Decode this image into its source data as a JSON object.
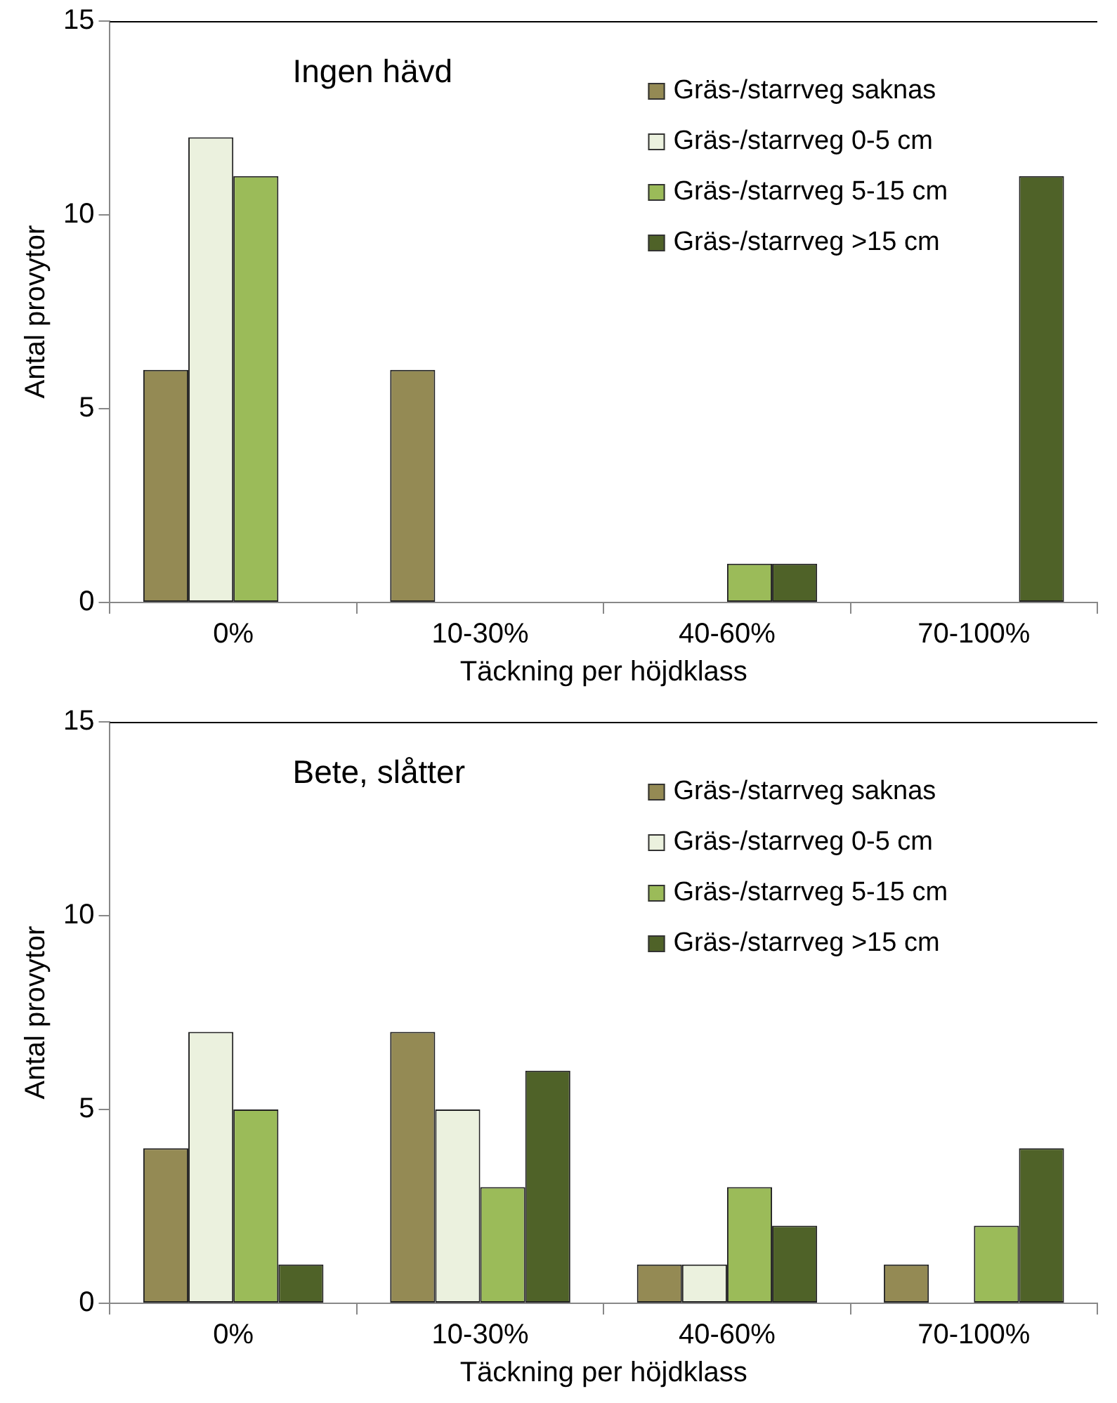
{
  "chart_data": [
    {
      "type": "bar",
      "title": "Ingen hävd",
      "xlabel": "Täckning per höjdklass",
      "ylabel": "Antal provytor",
      "categories": [
        "0%",
        "10-30%",
        "40-60%",
        "70-100%"
      ],
      "series": [
        {
          "name": "Gräs-/starrveg saknas",
          "color": "#948a54",
          "values": [
            6,
            6,
            0,
            0
          ]
        },
        {
          "name": "Gräs-/starrveg 0-5 cm",
          "color": "#ebf1de",
          "values": [
            12,
            0,
            0,
            0
          ]
        },
        {
          "name": "Gräs-/starrveg 5-15 cm",
          "color": "#9bbb59",
          "values": [
            11,
            0,
            1,
            0
          ]
        },
        {
          "name": "Gräs-/starrveg >15 cm",
          "color": "#4f6228",
          "values": [
            0,
            0,
            1,
            11
          ]
        }
      ],
      "ylim": [
        0,
        15
      ],
      "yticks": [
        0,
        5,
        10,
        15
      ],
      "grid": false,
      "legend": "top right"
    },
    {
      "type": "bar",
      "title": "Bete, slåtter",
      "xlabel": "Täckning per höjdklass",
      "ylabel": "Antal provytor",
      "categories": [
        "0%",
        "10-30%",
        "40-60%",
        "70-100%"
      ],
      "series": [
        {
          "name": "Gräs-/starrveg saknas",
          "color": "#948a54",
          "values": [
            4,
            7,
            1,
            1
          ]
        },
        {
          "name": "Gräs-/starrveg 0-5 cm",
          "color": "#ebf1de",
          "values": [
            7,
            5,
            1,
            0
          ]
        },
        {
          "name": "Gräs-/starrveg 5-15 cm",
          "color": "#9bbb59",
          "values": [
            5,
            3,
            3,
            2
          ]
        },
        {
          "name": "Gräs-/starrveg >15 cm",
          "color": "#4f6228",
          "values": [
            1,
            6,
            2,
            4
          ]
        }
      ],
      "ylim": [
        0,
        15
      ],
      "yticks": [
        0,
        5,
        10,
        15
      ],
      "grid": false,
      "legend": "top right"
    }
  ]
}
